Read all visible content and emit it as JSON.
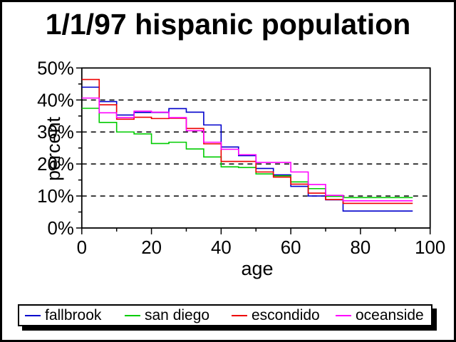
{
  "title": {
    "text": "1/1/97 hispanic population"
  },
  "axes": {
    "x_label": "age",
    "y_label": "percent",
    "x_tick_labels": [
      "0",
      "20",
      "40",
      "60",
      "80",
      "100"
    ],
    "y_tick_labels": [
      "0%",
      "10%",
      "20%",
      "30%",
      "40%",
      "50%"
    ]
  },
  "legend": {
    "items": [
      {
        "label": "fallbrook",
        "color": "#0000cc"
      },
      {
        "label": "san diego",
        "color": "#00cc00"
      },
      {
        "label": "escondido",
        "color": "#ee0000"
      },
      {
        "label": "oceanside",
        "color": "#ff00ff"
      }
    ]
  },
  "chart_data": {
    "type": "line",
    "subtype": "step-histogram",
    "title": "1/1/97 hispanic population",
    "xlabel": "age",
    "ylabel": "percent",
    "xlim": [
      0,
      100
    ],
    "ylim": [
      0,
      50
    ],
    "x_major_ticks": [
      0,
      20,
      40,
      60,
      80,
      100
    ],
    "x_minor_ticks": [
      10,
      30,
      50,
      70,
      90
    ],
    "y_major_ticks": [
      0,
      10,
      20,
      30,
      40,
      50
    ],
    "y_minor_ticks": [
      5,
      15,
      25,
      35,
      45
    ],
    "grid": "horizontal-dashed",
    "gridline_values": [
      10,
      20,
      30,
      40
    ],
    "legend_position": "bottom",
    "bin_edges": [
      0,
      5,
      10,
      15,
      20,
      25,
      30,
      35,
      40,
      45,
      50,
      55,
      60,
      65,
      70,
      75,
      80,
      85,
      90,
      95
    ],
    "units": "percent",
    "series": [
      {
        "name": "fallbrook",
        "color": "#0000cc",
        "values": [
          44.0,
          39.5,
          35.3,
          36.1,
          36.1,
          37.3,
          36.2,
          32.2,
          25.3,
          22.6,
          18.6,
          16.6,
          13.0,
          10.0,
          8.8,
          5.3,
          5.3,
          5.3,
          5.3
        ]
      },
      {
        "name": "san diego",
        "color": "#00cc00",
        "values": [
          37.4,
          33.0,
          30.0,
          29.4,
          26.4,
          26.8,
          24.7,
          22.2,
          19.1,
          18.9,
          16.9,
          16.3,
          14.4,
          12.3,
          9.9,
          9.5,
          9.5,
          9.5,
          9.5
        ]
      },
      {
        "name": "escondido",
        "color": "#ee0000",
        "values": [
          46.4,
          38.5,
          34.0,
          34.6,
          34.2,
          34.3,
          31.1,
          26.3,
          20.8,
          20.8,
          17.5,
          15.9,
          13.7,
          10.9,
          8.9,
          7.7,
          7.7,
          7.7,
          7.7
        ]
      },
      {
        "name": "oceanside",
        "color": "#ff00ff",
        "values": [
          40.6,
          36.0,
          34.5,
          36.5,
          36.2,
          34.5,
          30.4,
          26.8,
          24.6,
          22.9,
          20.5,
          20.5,
          17.5,
          13.6,
          10.2,
          8.5,
          8.5,
          8.5,
          8.5
        ]
      }
    ]
  }
}
